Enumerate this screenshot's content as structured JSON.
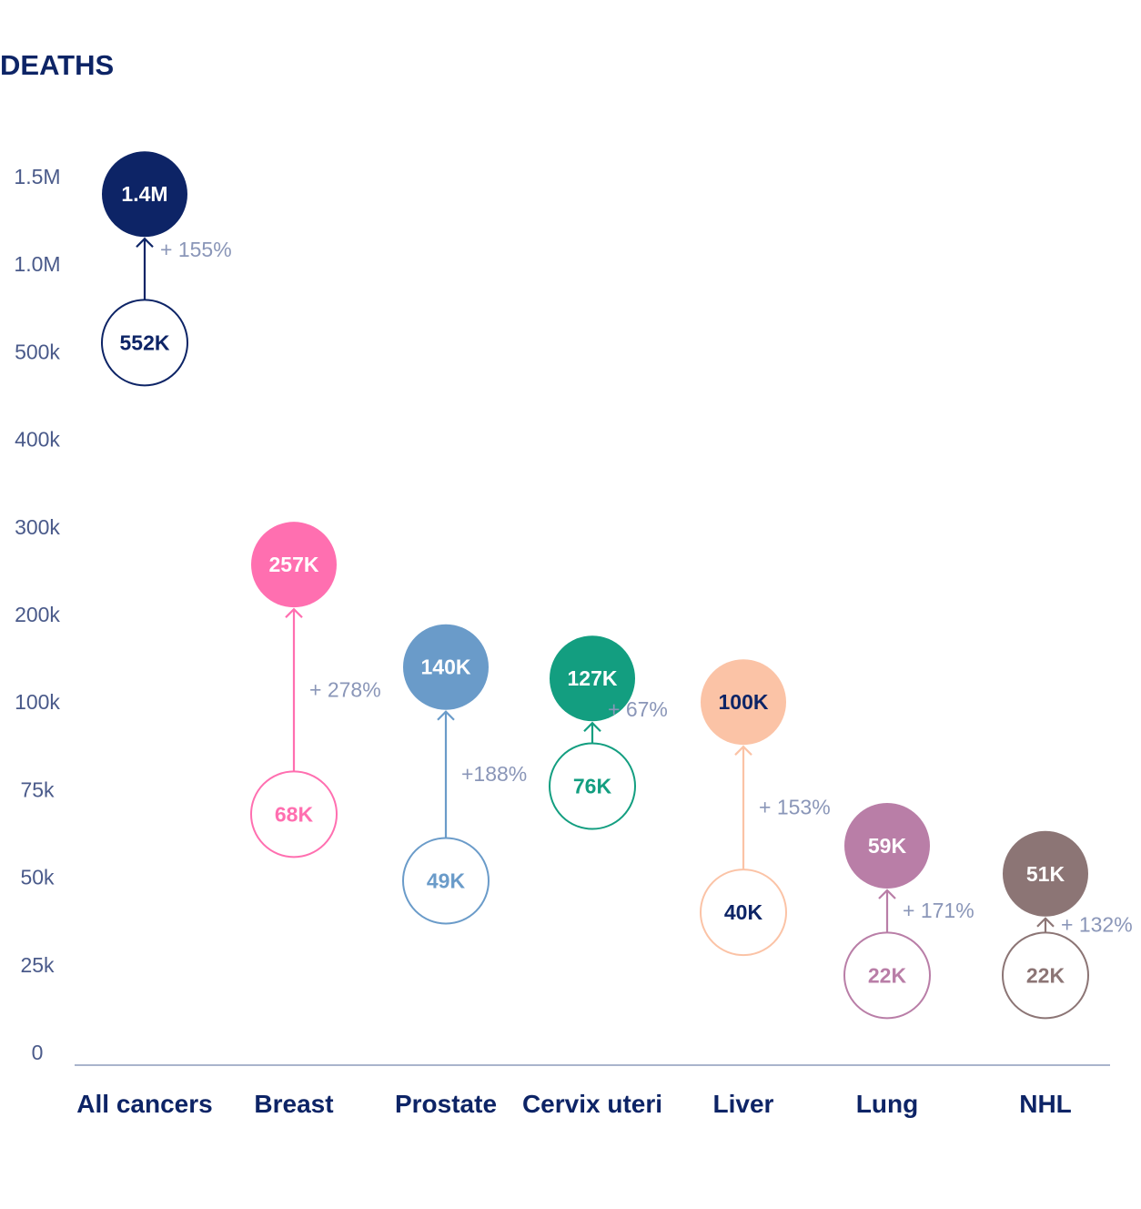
{
  "chart_data": {
    "type": "scatter",
    "title": "DEATHS",
    "y_ticks": [
      "1.5M",
      "1.0M",
      "500k",
      "400k",
      "300k",
      "200k",
      "100k",
      "75k",
      "50k",
      "25k",
      "0"
    ],
    "categories": [
      "All cancers",
      "Breast",
      "Prostate",
      "Cervix uteri",
      "Liver",
      "Lung",
      "NHL"
    ],
    "series": [
      {
        "values": [
          552000,
          68000,
          49000,
          76000,
          40000,
          22000,
          22000
        ],
        "labels": [
          "552K",
          "68K",
          "49K",
          "76K",
          "40K",
          "22K",
          "22K"
        ]
      },
      {
        "values": [
          1400000,
          257000,
          140000,
          127000,
          100000,
          59000,
          51000
        ],
        "labels": [
          "1.4M",
          "257K",
          "140K",
          "127K",
          "100K",
          "59K",
          "51K"
        ]
      }
    ],
    "change_labels": [
      "+ 155%",
      "+ 278%",
      "+188%",
      "+ 67%",
      "+ 153%",
      "+ 171%",
      "+ 132%"
    ],
    "colors": {
      "title": "#0d2466",
      "tick": "#4a5a8a",
      "category": "#0d2466",
      "axis": "#a9b4cc",
      "change": "#8a96b8",
      "categories": [
        "#0d2466",
        "#ff6fb0",
        "#6a9bc9",
        "#139e80",
        "#fbc3a6",
        "#b97ea7",
        "#8c7575"
      ],
      "open_text": [
        "#0d2466",
        "#ff6fb0",
        "#6a9bc9",
        "#139e80",
        "#0d2466",
        "#b97ea7",
        "#8c7575"
      ],
      "filled_text": [
        "#ffffff",
        "#ffffff",
        "#ffffff",
        "#ffffff",
        "#0d2466",
        "#ffffff",
        "#ffffff"
      ]
    }
  }
}
